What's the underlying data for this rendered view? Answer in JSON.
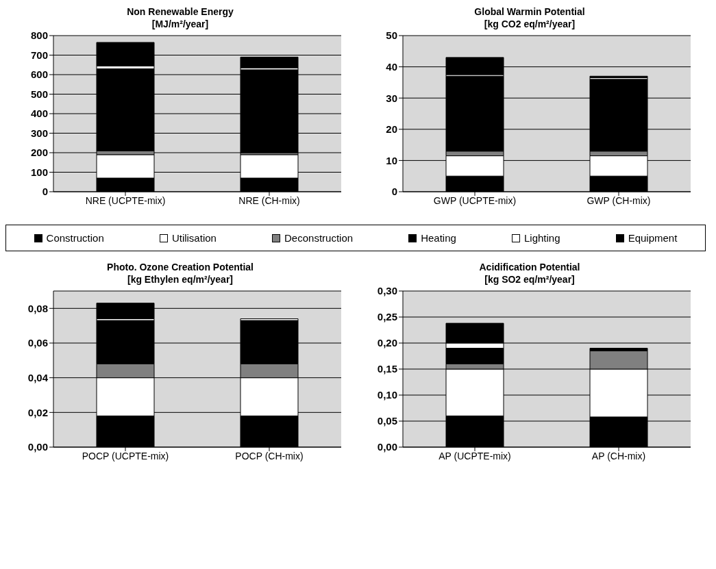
{
  "chart_data": [
    {
      "type": "bar",
      "title": "Non Renewable Energy",
      "subtitle": "[MJ/m²/year]",
      "stacked": true,
      "categories": [
        "NRE  (UCPTE-mix)",
        "NRE (CH-mix)"
      ],
      "ylim": [
        0,
        800
      ],
      "yticks": [
        0,
        100,
        200,
        300,
        400,
        500,
        600,
        700,
        800
      ],
      "grid": "y",
      "legend": "bottom",
      "series": [
        {
          "name": "Construction",
          "color": "#000000",
          "values": [
            70,
            70
          ]
        },
        {
          "name": "Utilisation",
          "color": "#ffffff",
          "values": [
            120,
            120
          ]
        },
        {
          "name": "Deconstruction",
          "color": "#808080",
          "values": [
            20,
            10
          ]
        },
        {
          "name": "Heating",
          "color": "#000000",
          "values": [
            420,
            425
          ]
        },
        {
          "name": "Lighting",
          "color": "#ffffff",
          "values": [
            15,
            10
          ]
        },
        {
          "name": "Equipment",
          "color": "#000000",
          "values": [
            120,
            55
          ]
        }
      ]
    },
    {
      "type": "bar",
      "title": "Global Warmin Potential",
      "subtitle": "[kg CO2 eq/m²/year]",
      "stacked": true,
      "categories": [
        "GWP (UCPTE-mix)",
        "GWP (CH-mix)"
      ],
      "ylim": [
        0,
        50
      ],
      "yticks": [
        0,
        10,
        20,
        30,
        40,
        50
      ],
      "grid": "y",
      "series": [
        {
          "color": "#000000",
          "values": [
            5,
            5
          ]
        },
        {
          "color": "#ffffff",
          "values": [
            6.5,
            6.5
          ]
        },
        {
          "color": "#808080",
          "values": [
            1.5,
            1.5
          ]
        },
        {
          "color": "#000000",
          "values": [
            24,
            23
          ]
        },
        {
          "color": "#ffffff",
          "values": [
            0.5,
            0.5
          ]
        },
        {
          "color": "#000000",
          "values": [
            5.5,
            0.5
          ]
        }
      ]
    },
    {
      "type": "bar",
      "title": "Photo. Ozone Creation Potential",
      "subtitle": "[kg Ethylen eq/m²/year]",
      "stacked": true,
      "categories": [
        "POCP  (UCPTE-mix)",
        "POCP (CH-mix)"
      ],
      "ylim": [
        0,
        0.09
      ],
      "yticks": [
        {
          "value": 0,
          "label": "0,00"
        },
        {
          "value": 0.02,
          "label": "0,02"
        },
        {
          "value": 0.04,
          "label": "0,04"
        },
        {
          "value": 0.06,
          "label": "0,06"
        },
        {
          "value": 0.08,
          "label": "0,08"
        }
      ],
      "grid": "y",
      "series": [
        {
          "color": "#000000",
          "values": [
            0.018,
            0.018
          ]
        },
        {
          "color": "#ffffff",
          "values": [
            0.022,
            0.022
          ]
        },
        {
          "color": "#808080",
          "values": [
            0.008,
            0.008
          ]
        },
        {
          "color": "#000000",
          "values": [
            0.025,
            0.025
          ]
        },
        {
          "color": "#ffffff",
          "values": [
            0.001,
            0.001
          ]
        },
        {
          "color": "#000000",
          "values": [
            0.009,
            0
          ]
        }
      ]
    },
    {
      "type": "bar",
      "title": "Acidification Potential",
      "subtitle": "[kg SO2 eq/m²/year]",
      "stacked": true,
      "categories": [
        "AP (UCPTE-mix)",
        "AP (CH-mix)"
      ],
      "ylim": [
        0,
        0.3
      ],
      "yticks": [
        {
          "value": 0,
          "label": "0,00"
        },
        {
          "value": 0.05,
          "label": "0,05"
        },
        {
          "value": 0.1,
          "label": "0,10"
        },
        {
          "value": 0.15,
          "label": "0,15"
        },
        {
          "value": 0.2,
          "label": "0,20"
        },
        {
          "value": 0.25,
          "label": "0,25"
        },
        {
          "value": 0.3,
          "label": "0,30"
        }
      ],
      "grid": "y",
      "series": [
        {
          "color": "#000000",
          "values": [
            0.06,
            0.058
          ]
        },
        {
          "color": "#ffffff",
          "values": [
            0.09,
            0.092
          ]
        },
        {
          "color": "#808080",
          "values": [
            0.01,
            0.035
          ]
        },
        {
          "color": "#000000",
          "values": [
            0.03,
            0.005
          ]
        },
        {
          "color": "#ffffff",
          "values": [
            0.01,
            0
          ]
        },
        {
          "color": "#000000",
          "values": [
            0.038,
            0
          ]
        }
      ]
    }
  ]
}
